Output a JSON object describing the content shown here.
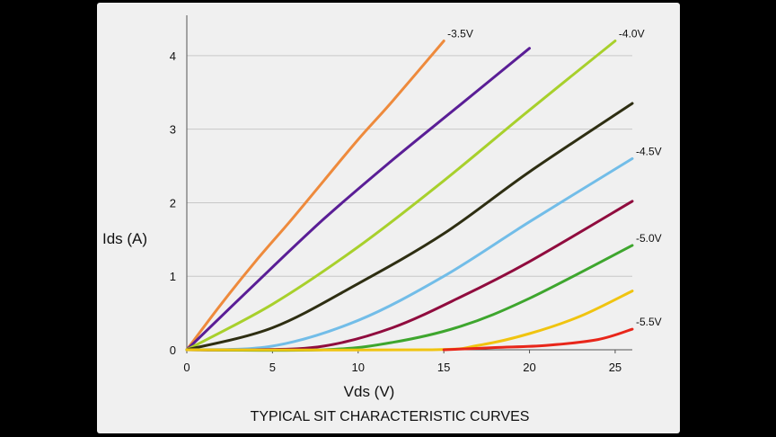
{
  "chart_data": {
    "type": "line",
    "title": "TYPICAL SIT CHARACTERISTIC CURVES",
    "xlabel": "Vds (V)",
    "ylabel": "Ids (A)",
    "xlim": [
      0,
      26
    ],
    "ylim": [
      0,
      4.5
    ],
    "xticks": [
      "0",
      "5",
      "10",
      "15",
      "20",
      "25"
    ],
    "yticks": [
      "0",
      "1",
      "2",
      "3",
      "4"
    ],
    "grid": "horizontal",
    "legend": "none",
    "series": [
      {
        "name": "-3.5V",
        "color": "#ee8a3c",
        "x": [
          0,
          2,
          4,
          6,
          8,
          10,
          12,
          15
        ],
        "y": [
          0,
          0.62,
          1.2,
          1.74,
          2.3,
          2.86,
          3.38,
          4.2
        ]
      },
      {
        "color": "#5a1e96",
        "x": [
          0,
          4,
          8,
          12,
          16,
          20
        ],
        "y": [
          0,
          0.9,
          1.78,
          2.58,
          3.34,
          4.1
        ]
      },
      {
        "name": "-4.0V",
        "color": "#a8d02c",
        "x": [
          0,
          5,
          10,
          15,
          20,
          25
        ],
        "y": [
          0,
          0.62,
          1.4,
          2.3,
          3.26,
          4.2
        ]
      },
      {
        "color": "#2e2e12",
        "x": [
          0,
          5,
          10,
          15,
          20,
          26
        ],
        "y": [
          0,
          0.3,
          0.9,
          1.58,
          2.42,
          3.35
        ]
      },
      {
        "name": "-4.5V",
        "color": "#72bde8",
        "x": [
          0,
          5,
          10,
          15,
          20,
          26
        ],
        "y": [
          0,
          0.05,
          0.4,
          1.0,
          1.74,
          2.6
        ]
      },
      {
        "color": "#900c3e",
        "x": [
          0,
          4,
          8,
          12,
          16,
          20,
          26
        ],
        "y": [
          0,
          0,
          0.05,
          0.3,
          0.72,
          1.2,
          2.02
        ]
      },
      {
        "name": "-5.0V",
        "color": "#3ea62e",
        "x": [
          0,
          8,
          12,
          16,
          20,
          26
        ],
        "y": [
          0,
          0,
          0.1,
          0.32,
          0.7,
          1.42
        ]
      },
      {
        "color": "#f0c410",
        "x": [
          0,
          14,
          17,
          20,
          23,
          26
        ],
        "y": [
          0,
          0,
          0.06,
          0.22,
          0.46,
          0.8
        ]
      },
      {
        "name": "-5.5V",
        "color": "#e8261a",
        "x": [
          15,
          18,
          21,
          24,
          26
        ],
        "y": [
          0,
          0.03,
          0.06,
          0.14,
          0.28
        ]
      }
    ]
  }
}
